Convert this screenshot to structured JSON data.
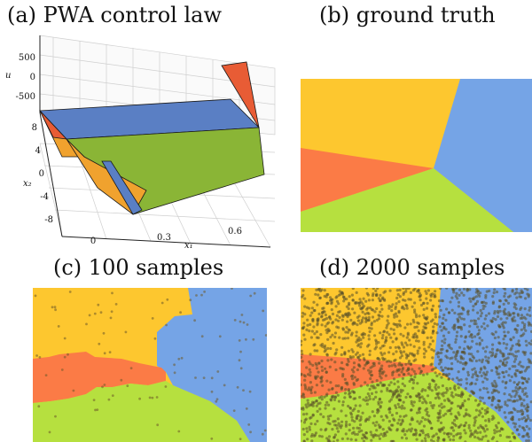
{
  "titles": {
    "a": "(a) PWA control law",
    "b": "(b) ground truth",
    "c": "(c) 100 samples",
    "d": "(d) 2000 samples"
  },
  "colors": {
    "yellow": "#fdc72f",
    "blue": "#75a4e6",
    "orange": "#fb7b46",
    "green": "#b6e03f",
    "plane_blue": "#5a7fc4",
    "plane_green": "#8ab536",
    "plane_orange": "#f0a22e",
    "plane_red": "#e85c35"
  },
  "chart_data": [
    {
      "panel": "a",
      "type": "surface",
      "title": "(a) PWA control law",
      "xlabel": "x₁",
      "ylabel": "x₂",
      "zlabel": "u",
      "x_ticks": [
        "0",
        "0.3",
        "0.6"
      ],
      "y_ticks": [
        "8",
        "4",
        "0",
        "-4",
        "-8"
      ],
      "z_ticks": [
        "500",
        "0",
        "-500"
      ],
      "grid": true
    },
    {
      "panel": "b",
      "type": "region_map",
      "title": "(b) ground truth",
      "regions": [
        "yellow",
        "blue",
        "orange",
        "green"
      ]
    },
    {
      "panel": "c",
      "type": "region_map",
      "title": "(c) 100 samples",
      "samples": 100,
      "regions": [
        "yellow",
        "blue",
        "orange",
        "green"
      ]
    },
    {
      "panel": "d",
      "type": "region_map",
      "title": "(d) 2000 samples",
      "samples": 2000,
      "regions": [
        "yellow",
        "blue",
        "orange",
        "green"
      ]
    }
  ]
}
